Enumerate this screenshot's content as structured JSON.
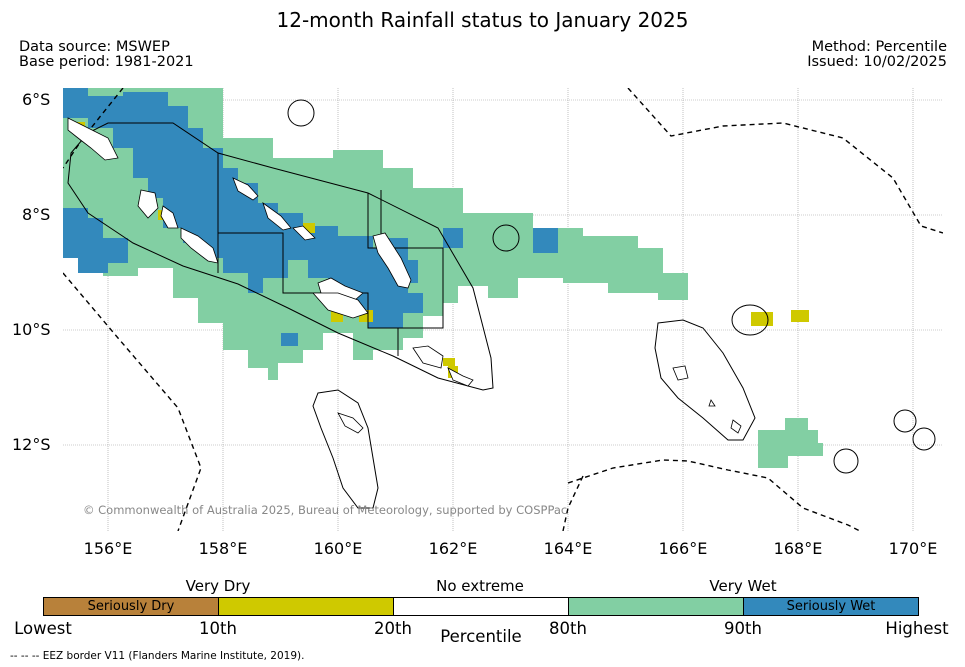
{
  "title": "12-month Rainfall status to January 2025",
  "data_source": "Data source: MSWEP",
  "base_period": "Base period: 1981-2021",
  "method": "Method: Percentile",
  "issued": "Issued: 10/02/2025",
  "lat_labels": [
    "6°S",
    "8°S",
    "10°S",
    "12°S"
  ],
  "lon_labels": [
    "156°E",
    "158°E",
    "160°E",
    "162°E",
    "164°E",
    "166°E",
    "168°E",
    "170°E"
  ],
  "copyright": "© Commonwealth of Australia 2025, Bureau of Meteorology, supported by COSPPac",
  "legend": {
    "categories": [
      "Very Dry",
      "No extreme",
      "Very Wet"
    ],
    "boxes": [
      {
        "label": "Seriously Dry",
        "color": "#b8813a"
      },
      {
        "label": "",
        "color": "#cfc900"
      },
      {
        "label": "",
        "color": "#ffffff"
      },
      {
        "label": "",
        "color": "#82cfa3"
      },
      {
        "label": "Seriously Wet",
        "color": "#3389bc"
      }
    ],
    "ticks": [
      "Lowest",
      "10th",
      "20th",
      "80th",
      "90th",
      "Highest"
    ],
    "axis_label": "Percentile"
  },
  "footnote": "--  --  -- EEZ border V11 (Flanders Marine Institute, 2019)."
}
